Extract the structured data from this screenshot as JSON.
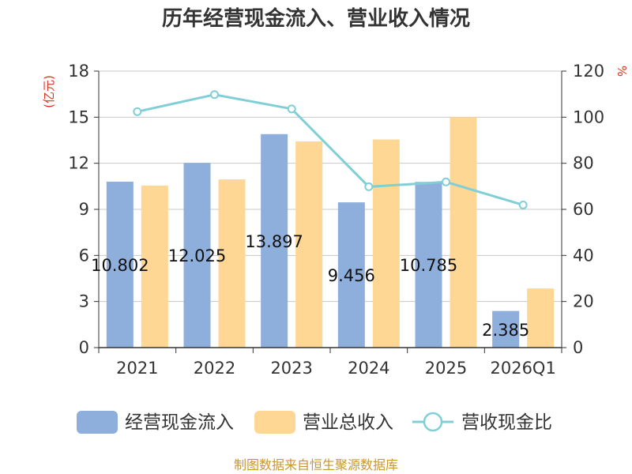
{
  "chart_data": {
    "type": "bar",
    "title": "历年经营现金流入、营业收入情况",
    "categories": [
      "2021",
      "2022",
      "2023",
      "2024",
      "2025",
      "2026Q1"
    ],
    "series": [
      {
        "name": "经营现金流入",
        "kind": "bar",
        "axis": "left",
        "color": "#8eaedb",
        "values": [
          10.802,
          12.025,
          13.897,
          9.456,
          10.785,
          2.385
        ]
      },
      {
        "name": "营业总收入",
        "kind": "bar",
        "axis": "left",
        "color": "#fed795",
        "values": [
          10.55,
          10.95,
          13.42,
          13.55,
          15.0,
          3.85
        ]
      },
      {
        "name": "营收现金比",
        "kind": "line",
        "axis": "right",
        "color": "#80cfd6",
        "values": [
          102.4,
          109.8,
          103.6,
          69.8,
          71.9,
          61.9
        ]
      }
    ],
    "data_labels": [
      "10.802",
      "12.025",
      "13.897",
      "9.456",
      "10.785",
      "2.385"
    ],
    "y_left": {
      "unit": "(亿元)",
      "ylim": [
        0,
        18
      ],
      "ticks": [
        0,
        3,
        6,
        9,
        12,
        15,
        18
      ]
    },
    "y_right": {
      "unit": "%",
      "ylim": [
        0,
        120
      ],
      "ticks": [
        0,
        20,
        40,
        60,
        80,
        100,
        120
      ]
    },
    "grid": true,
    "legend": "bottom"
  },
  "source": "制图数据来自恒生聚源数据库"
}
